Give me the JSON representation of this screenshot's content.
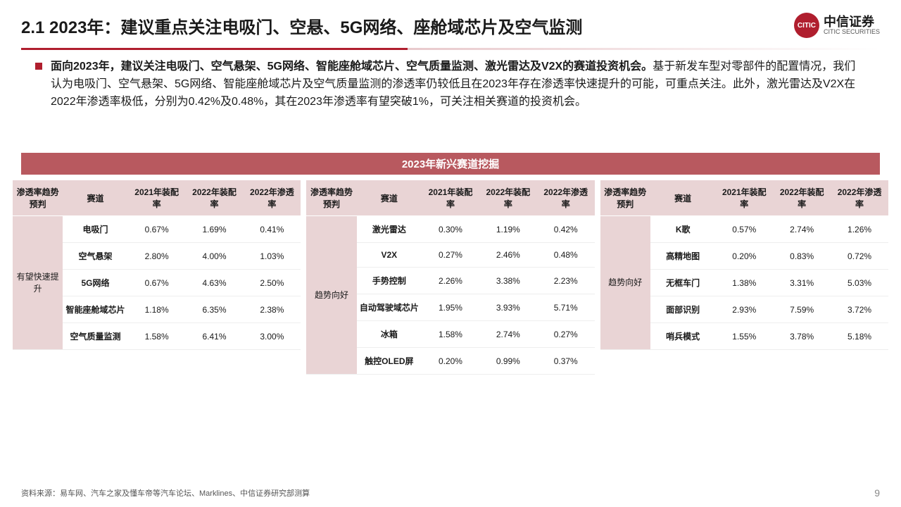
{
  "header": {
    "title": "2.1 2023年：建议重点关注电吸门、空悬、5G网络、座舱域芯片及空气监测",
    "logo_cn": "中信证券",
    "logo_en": "CITIC SECURITIES",
    "logo_abbr": "CITIC"
  },
  "paragraph": {
    "bold": "面向2023年，建议关注电吸门、空气悬架、5G网络、智能座舱域芯片、空气质量监测、激光雷达及V2X的赛道投资机会。",
    "rest": "基于新发车型对零部件的配置情况，我们认为电吸门、空气悬架、5G网络、智能座舱域芯片及空气质量监测的渗透率仍较低且在2023年存在渗透率快速提升的可能，可重点关注。此外，激光雷达及V2X在2022年渗透率极低，分别为0.42%及0.48%，其在2023年渗透率有望突破1%，可关注相关赛道的投资机会。"
  },
  "table_title": "2023年新兴赛道挖掘",
  "columns": [
    "渗透率趋势预判",
    "赛道",
    "2021年装配率",
    "2022年装配率",
    "2022年渗透率"
  ],
  "group1": {
    "trend": "有望快速提升",
    "rows": [
      {
        "track": "电吸门",
        "v2021": "0.67%",
        "v2022a": "1.69%",
        "v2022p": "0.41%"
      },
      {
        "track": "空气悬架",
        "v2021": "2.80%",
        "v2022a": "4.00%",
        "v2022p": "1.03%"
      },
      {
        "track": "5G网络",
        "v2021": "0.67%",
        "v2022a": "4.63%",
        "v2022p": "2.50%"
      },
      {
        "track": "智能座舱域芯片",
        "v2021": "1.18%",
        "v2022a": "6.35%",
        "v2022p": "2.38%"
      },
      {
        "track": "空气质量监测",
        "v2021": "1.58%",
        "v2022a": "6.41%",
        "v2022p": "3.00%"
      }
    ]
  },
  "group2": {
    "trend": "趋势向好",
    "rows": [
      {
        "track": "激光雷达",
        "v2021": "0.30%",
        "v2022a": "1.19%",
        "v2022p": "0.42%"
      },
      {
        "track": "V2X",
        "v2021": "0.27%",
        "v2022a": "2.46%",
        "v2022p": "0.48%"
      },
      {
        "track": "手势控制",
        "v2021": "2.26%",
        "v2022a": "3.38%",
        "v2022p": "2.23%"
      },
      {
        "track": "自动驾驶域芯片",
        "v2021": "1.95%",
        "v2022a": "3.93%",
        "v2022p": "5.71%"
      },
      {
        "track": "冰箱",
        "v2021": "1.58%",
        "v2022a": "2.74%",
        "v2022p": "0.27%"
      },
      {
        "track": "触控OLED屏",
        "v2021": "0.20%",
        "v2022a": "0.99%",
        "v2022p": "0.37%"
      }
    ]
  },
  "group3": {
    "trend": "趋势向好",
    "rows": [
      {
        "track": "K歌",
        "v2021": "0.57%",
        "v2022a": "2.74%",
        "v2022p": "1.26%"
      },
      {
        "track": "高精地图",
        "v2021": "0.20%",
        "v2022a": "0.83%",
        "v2022p": "0.72%"
      },
      {
        "track": "无框车门",
        "v2021": "1.38%",
        "v2022a": "3.31%",
        "v2022p": "5.03%"
      },
      {
        "track": "面部识别",
        "v2021": "2.93%",
        "v2022a": "7.59%",
        "v2022p": "3.72%"
      },
      {
        "track": "哨兵模式",
        "v2021": "1.55%",
        "v2022a": "3.78%",
        "v2022p": "5.18%"
      }
    ]
  },
  "source": "资料来源：易车网、汽车之家及懂车帝等汽车论坛、Marklines、中信证券研究部测算",
  "page": "9"
}
